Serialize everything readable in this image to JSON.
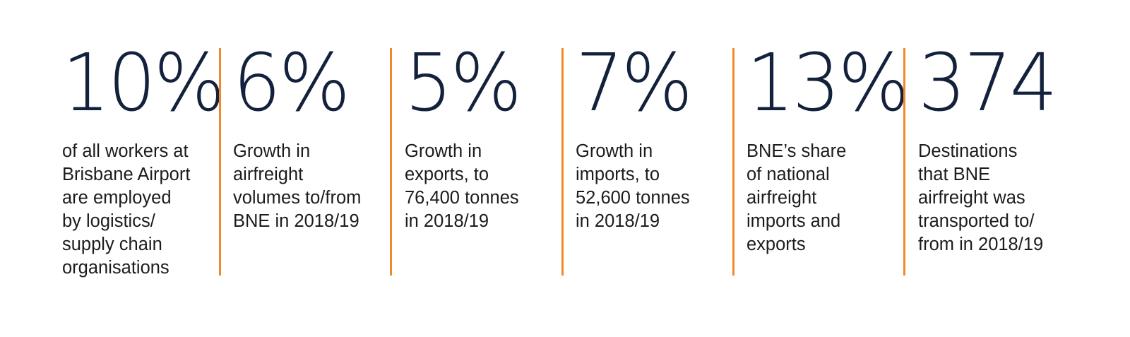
{
  "accent_color": "#f0892c",
  "number_color": "#13213c",
  "stats": [
    {
      "value": "10%",
      "description": "of all workers at\nBrisbane Airport\nare employed\nby logistics/\nsupply chain\norganisations"
    },
    {
      "value": "6%",
      "description": "Growth in\nairfreight\nvolumes to/from\nBNE in 2018/19"
    },
    {
      "value": "5%",
      "description": "Growth in\nexports, to\n76,400 tonnes\nin 2018/19"
    },
    {
      "value": "7%",
      "description": "Growth in\nimports, to\n52,600 tonnes\nin 2018/19"
    },
    {
      "value": "13%",
      "description": "BNE’s share\nof national\nairfreight\nimports and\nexports"
    },
    {
      "value": "374",
      "description": "Destinations\nthat BNE\nairfreight was\ntransported to/\nfrom in 2018/19"
    }
  ]
}
